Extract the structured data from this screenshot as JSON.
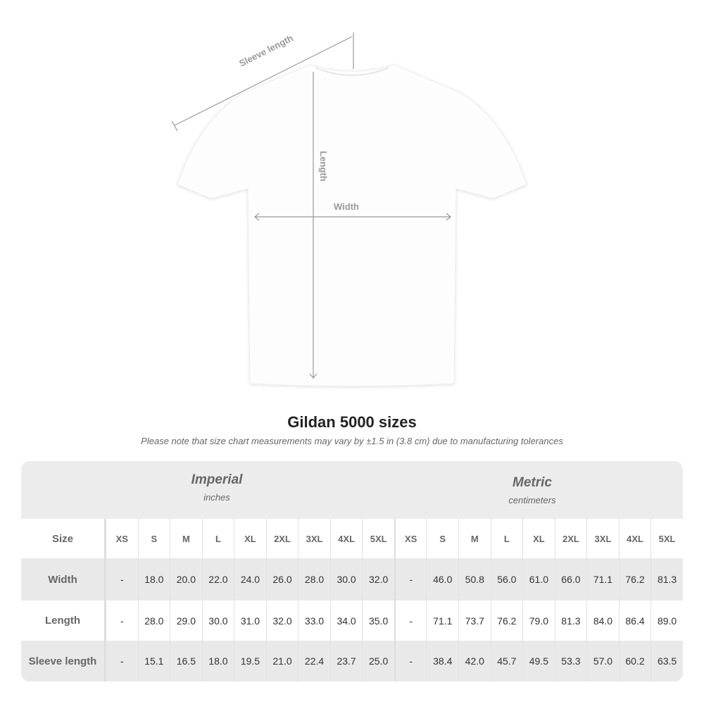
{
  "diagram": {
    "sleeve_label": "Sleeve length",
    "length_label": "Length",
    "width_label": "Width"
  },
  "title": "Gildan 5000 sizes",
  "subtitle": "Please note that size chart measurements may vary by ±1.5 in (3.8 cm) due to manufacturing tolerances",
  "table": {
    "imperial": {
      "name": "Imperial",
      "unit": "inches"
    },
    "metric": {
      "name": "Metric",
      "unit": "centimeters"
    },
    "size_label": "Size",
    "sizes": [
      "XS",
      "S",
      "M",
      "L",
      "XL",
      "2XL",
      "3XL",
      "4XL",
      "5XL"
    ],
    "rows": [
      {
        "label": "Width",
        "imperial": [
          "-",
          "18.0",
          "20.0",
          "22.0",
          "24.0",
          "26.0",
          "28.0",
          "30.0",
          "32.0"
        ],
        "metric": [
          "-",
          "46.0",
          "50.8",
          "56.0",
          "61.0",
          "66.0",
          "71.1",
          "76.2",
          "81.3"
        ]
      },
      {
        "label": "Length",
        "imperial": [
          "-",
          "28.0",
          "29.0",
          "30.0",
          "31.0",
          "32.0",
          "33.0",
          "34.0",
          "35.0"
        ],
        "metric": [
          "-",
          "71.1",
          "73.7",
          "76.2",
          "79.0",
          "81.3",
          "84.0",
          "86.4",
          "89.0"
        ]
      },
      {
        "label": "Sleeve length",
        "imperial": [
          "-",
          "15.1",
          "16.5",
          "18.0",
          "19.5",
          "21.0",
          "22.4",
          "23.7",
          "25.0"
        ],
        "metric": [
          "-",
          "38.4",
          "42.0",
          "45.7",
          "49.5",
          "53.3",
          "57.0",
          "60.2",
          "63.5"
        ]
      }
    ]
  }
}
